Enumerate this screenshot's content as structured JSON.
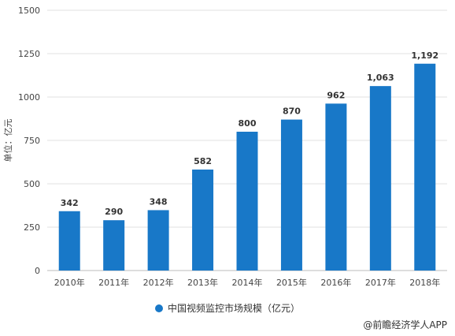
{
  "chart_data": {
    "type": "bar",
    "categories": [
      "2010年",
      "2011年",
      "2012年",
      "2013年",
      "2014年",
      "2015年",
      "2016年",
      "2017年",
      "2018年"
    ],
    "values": [
      342,
      290,
      348,
      582,
      800,
      870,
      962,
      1063,
      1192
    ],
    "value_labels": [
      "342",
      "290",
      "348",
      "582",
      "800",
      "870",
      "962",
      "1,063",
      "1,192"
    ],
    "series": [
      {
        "name": "中国视频监控市场规模（亿元）",
        "values": [
          342,
          290,
          348,
          582,
          800,
          870,
          962,
          1063,
          1192
        ]
      }
    ],
    "ylabel": "单位：亿元",
    "yticks": [
      "0",
      "250",
      "500",
      "750",
      "1000",
      "1250",
      "1500"
    ],
    "ylim": [
      0,
      1500
    ],
    "grid": true,
    "legend_position": "bottom",
    "color": "#1878c8"
  },
  "source": "@前瞻经济学人APP"
}
